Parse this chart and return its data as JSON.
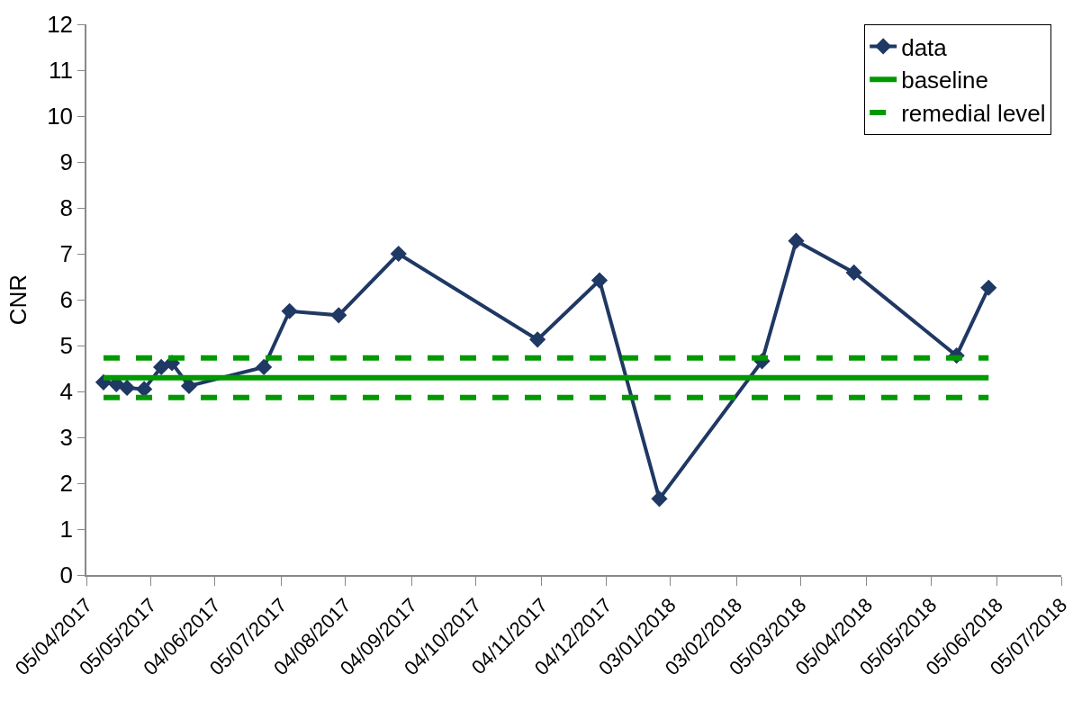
{
  "chart_data": {
    "type": "line",
    "ylabel": "CNR",
    "xlim": [
      "2017-04-05",
      "2018-07-05"
    ],
    "xticks": [
      {
        "value": "2017-04-05",
        "label": "05/04/2017"
      },
      {
        "value": "2017-05-05",
        "label": "05/05/2017"
      },
      {
        "value": "2017-06-04",
        "label": "04/06/2017"
      },
      {
        "value": "2017-07-05",
        "label": "05/07/2017"
      },
      {
        "value": "2017-08-04",
        "label": "04/08/2017"
      },
      {
        "value": "2017-09-04",
        "label": "04/09/2017"
      },
      {
        "value": "2017-10-04",
        "label": "04/10/2017"
      },
      {
        "value": "2017-11-04",
        "label": "04/11/2017"
      },
      {
        "value": "2017-12-04",
        "label": "04/12/2017"
      },
      {
        "value": "2018-01-03",
        "label": "03/01/2018"
      },
      {
        "value": "2018-02-03",
        "label": "03/02/2018"
      },
      {
        "value": "2018-03-05",
        "label": "05/03/2018"
      },
      {
        "value": "2018-04-05",
        "label": "05/04/2018"
      },
      {
        "value": "2018-05-05",
        "label": "05/05/2018"
      },
      {
        "value": "2018-06-05",
        "label": "05/06/2018"
      },
      {
        "value": "2018-07-05",
        "label": "05/07/2018"
      }
    ],
    "ylim": [
      0,
      12
    ],
    "yticks": [
      0,
      1,
      2,
      3,
      4,
      5,
      6,
      7,
      8,
      9,
      10,
      11,
      12
    ],
    "grid": false,
    "legend": "top right",
    "series": [
      {
        "name": "data",
        "color": "#1f3864",
        "marker": "diamond",
        "line_style": "solid",
        "x": [
          "2017-04-13",
          "2017-04-19",
          "2017-04-24",
          "2017-05-02",
          "2017-05-10",
          "2017-05-15",
          "2017-05-23",
          "2017-06-27",
          "2017-07-09",
          "2017-08-01",
          "2017-08-29",
          "2017-11-02",
          "2017-12-01",
          "2017-12-29",
          "2018-02-15",
          "2018-03-03",
          "2018-03-30",
          "2018-05-17",
          "2018-06-01"
        ],
        "values": [
          4.2,
          4.16,
          4.08,
          4.05,
          4.53,
          4.62,
          4.12,
          4.53,
          5.75,
          5.66,
          7.0,
          5.13,
          6.42,
          1.66,
          4.66,
          7.28,
          6.59,
          4.78,
          6.26
        ]
      },
      {
        "name": "baseline",
        "color": "#009900",
        "marker": "none",
        "line_style": "solid",
        "x": [
          "2017-04-13",
          "2018-06-01"
        ],
        "values": [
          4.3,
          4.3
        ]
      },
      {
        "name": "remedial level",
        "color": "#009900",
        "marker": "none",
        "line_style": "dashed",
        "x": [
          "2017-04-13",
          "2018-06-01"
        ],
        "values": [
          4.73,
          4.73
        ]
      },
      {
        "color": "#009900",
        "marker": "none",
        "line_style": "dashed",
        "x": [
          "2017-04-13",
          "2018-06-01"
        ],
        "values": [
          3.87,
          3.87
        ]
      }
    ]
  }
}
